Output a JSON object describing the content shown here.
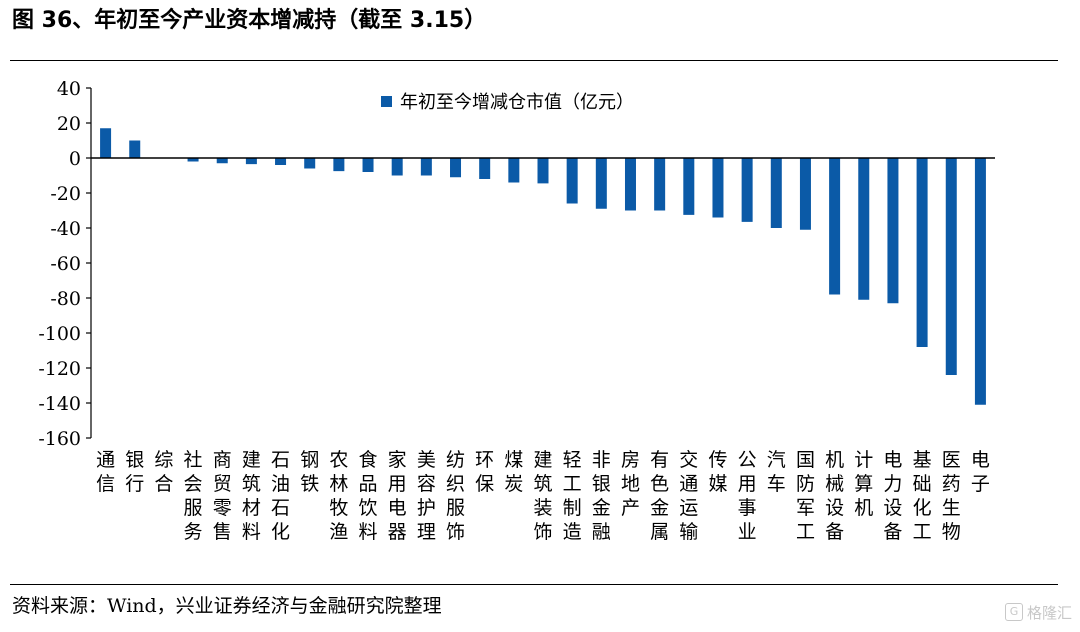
{
  "figure": {
    "title": "图 36、年初至今产业资本增减持（截至 3.15）",
    "source": "资料来源：Wind，兴业证券经济与金融研究院整理",
    "watermark": "格隆汇"
  },
  "colors": {
    "bar": "#0b5aa7",
    "axis": "#000000"
  },
  "chart_data": {
    "type": "bar",
    "legend": "top-center",
    "grid": false,
    "ylim": [
      -160,
      40
    ],
    "yticks": [
      40,
      20,
      0,
      -20,
      -40,
      -60,
      -80,
      -100,
      -120,
      -140,
      -160
    ],
    "categories": [
      "通信",
      "银行",
      "综合",
      "社会服务",
      "商贸零售",
      "建筑材料",
      "石油石化",
      "钢铁",
      "农林牧渔",
      "食品饮料",
      "家用电器",
      "美容护理",
      "纺织服饰",
      "环保",
      "煤炭",
      "建筑装饰",
      "轻工制造",
      "非银金融",
      "房地产",
      "有色金属",
      "交通运输",
      "传媒",
      "公用事业",
      "汽车",
      "国防军工",
      "机械设备",
      "计算机",
      "电力设备",
      "基础化工",
      "医药生物",
      "电子"
    ],
    "series": [
      {
        "name": "年初至今增减仓市值（亿元）",
        "values": [
          17,
          10,
          0,
          -2,
          -3,
          -3.5,
          -4,
          -6,
          -7.5,
          -8,
          -10,
          -10,
          -11,
          -12,
          -14,
          -14.5,
          -26,
          -29,
          -30,
          -30,
          -32.5,
          -34,
          -36.5,
          -40,
          -41,
          -78,
          -81,
          -83,
          -108,
          -124,
          -141
        ]
      }
    ]
  }
}
